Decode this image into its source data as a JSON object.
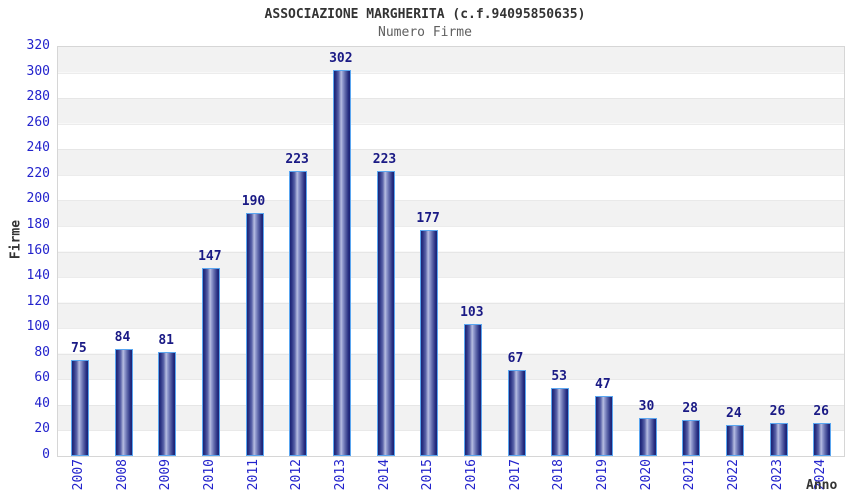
{
  "title": "ASSOCIAZIONE MARGHERITA (c.f.94095850635)",
  "subtitle": "Numero Firme",
  "chart_data": {
    "type": "bar",
    "title": "ASSOCIAZIONE MARGHERITA (c.f.94095850635)",
    "subtitle": "Numero Firme",
    "xlabel": "Anno",
    "ylabel": "Firme",
    "categories": [
      "2007",
      "2008",
      "2009",
      "2010",
      "2011",
      "2012",
      "2013",
      "2014",
      "2015",
      "2016",
      "2017",
      "2018",
      "2019",
      "2020",
      "2021",
      "2022",
      "2023",
      "2024"
    ],
    "values": [
      75,
      84,
      81,
      147,
      190,
      223,
      302,
      223,
      177,
      103,
      67,
      53,
      47,
      30,
      28,
      24,
      26,
      26
    ],
    "ylim": [
      0,
      320
    ],
    "ytick_step": 20,
    "grid": "alternating-bands",
    "legend": "none",
    "colors": {
      "tick_label": "#2323cc",
      "value_label": "#1a1a85",
      "bar_border": "#5aa6f0",
      "bar_dark": "#1c2375",
      "bar_light": "#b7bde0",
      "band_gray": "#f2f2f2",
      "band_white": "#ffffff",
      "plot_border": "#d6d6d6",
      "title_color": "#333333",
      "subtitle_color": "#606060"
    }
  }
}
